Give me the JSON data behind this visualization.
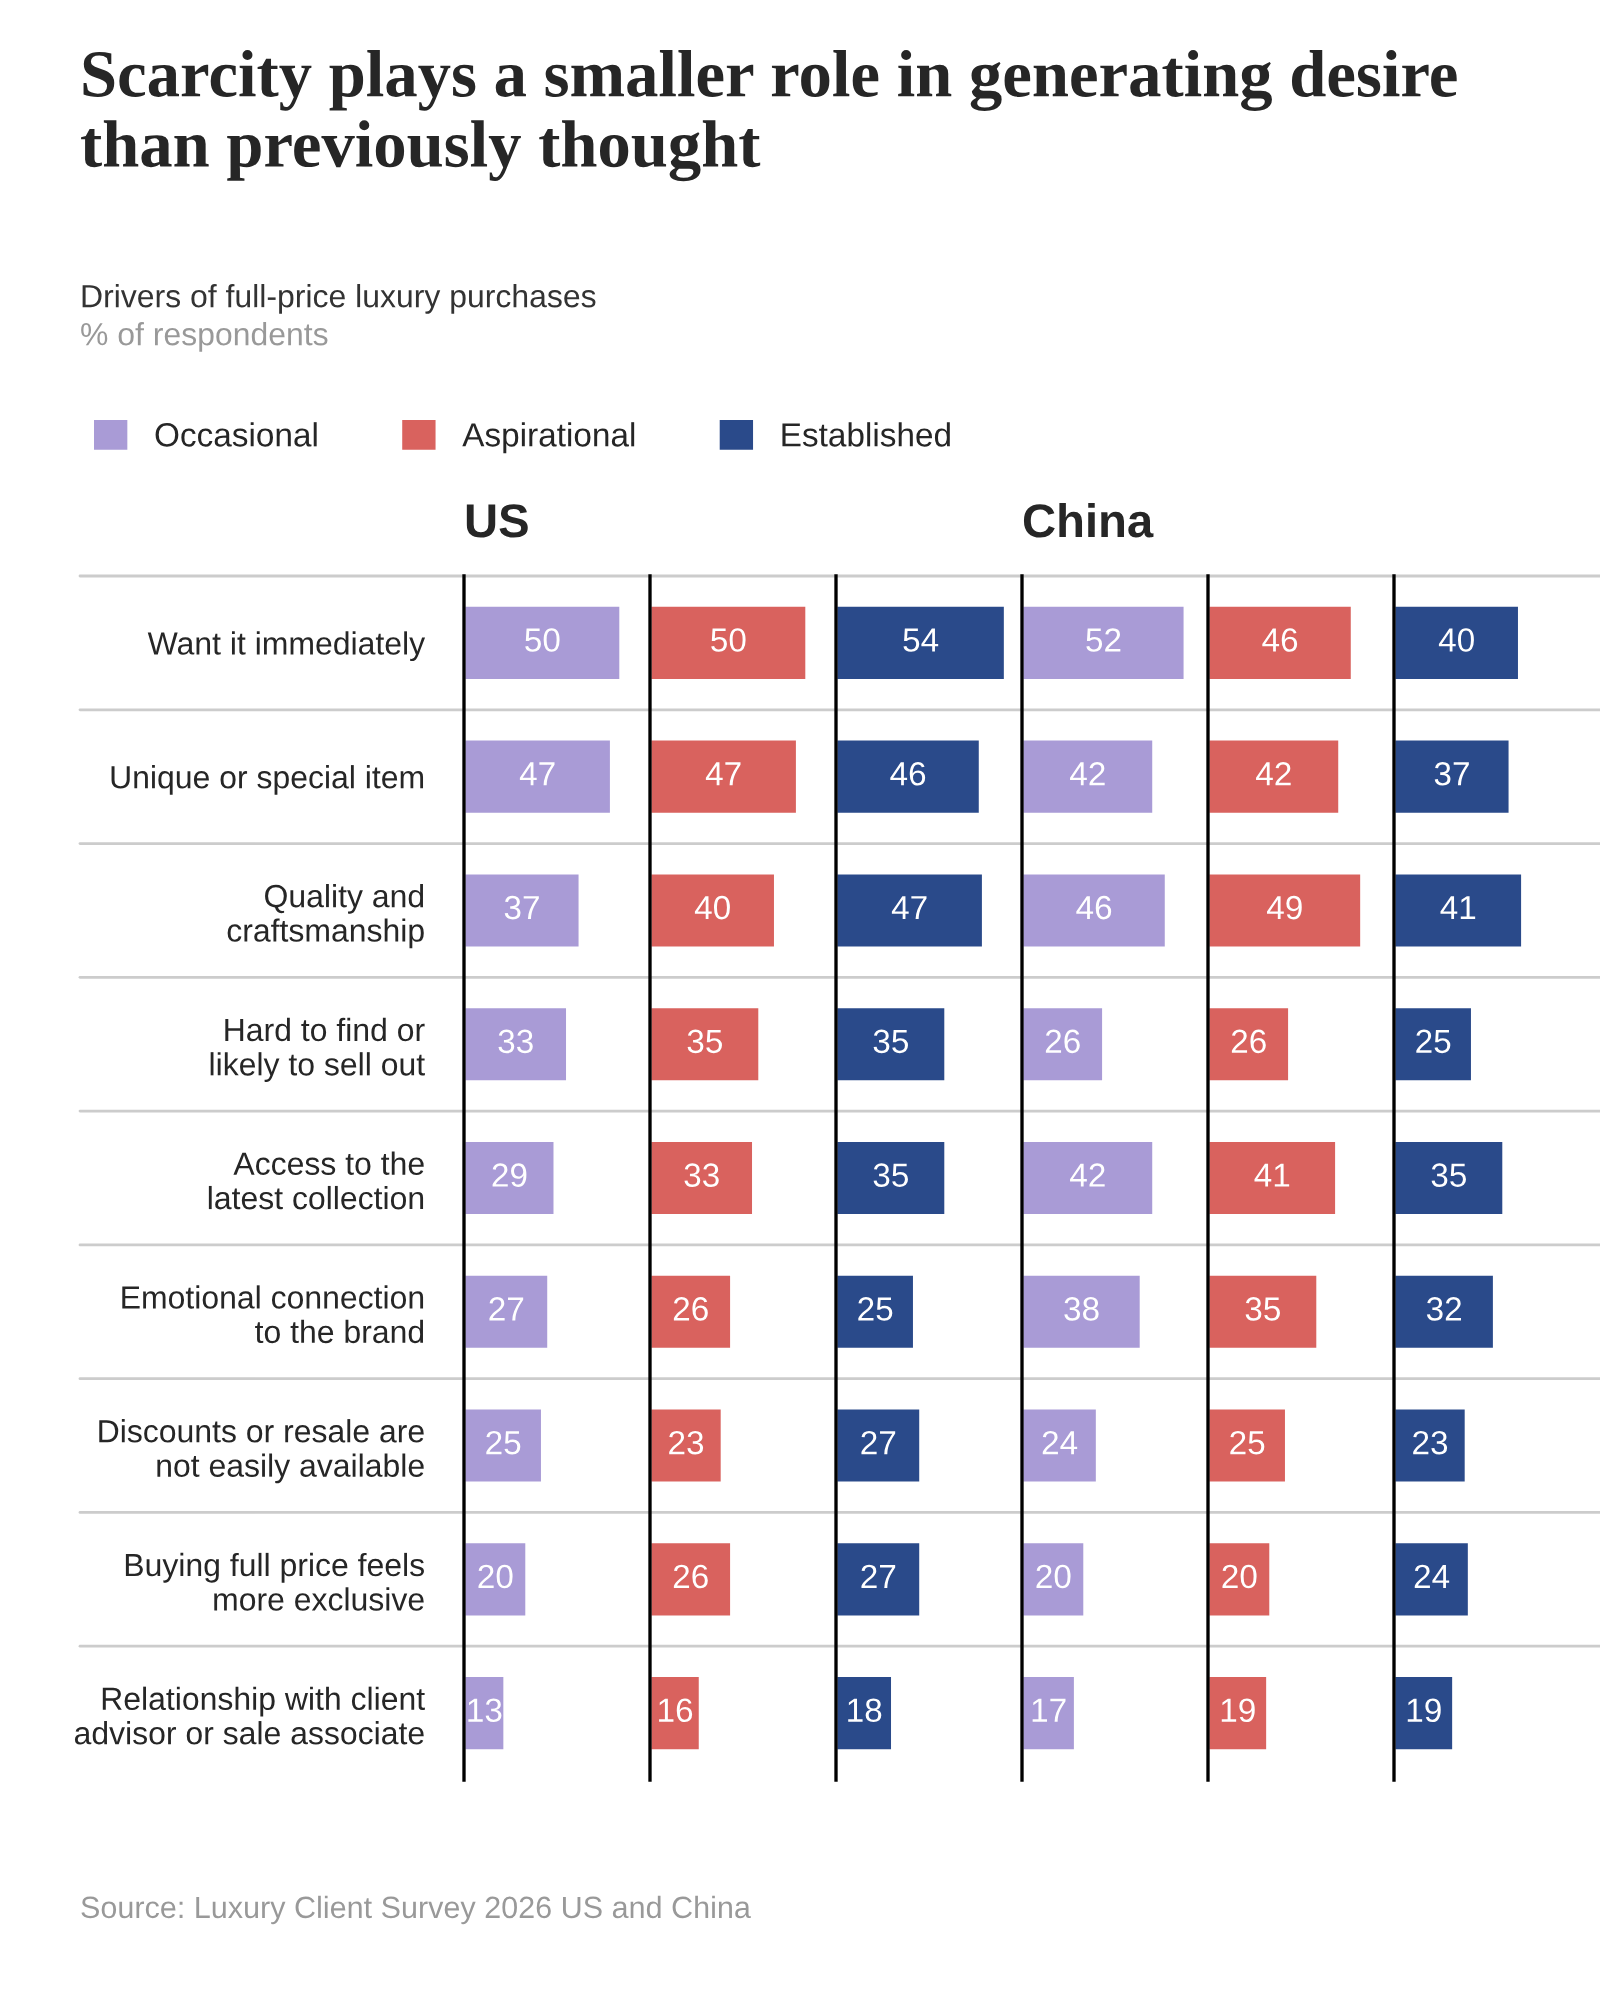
{
  "chart_data": [
    {
      "type": "other",
      "title": "Scarcity plays a smaller role in generating desire than previously thought",
      "subtitle": "Drivers of full-price luxury purchases",
      "annotations": [
        "% of respondents",
        "Source: Luxury Client Survey 2026 US and China"
      ]
    },
    {
      "type": "bar",
      "orientation": "horizontal",
      "title": "US",
      "tick_labels": "y",
      "legend": "top",
      "data_labels": true,
      "categories": [
        "Want it immediately",
        "Unique or special item",
        "Quality and\ncraftsmanship",
        "Hard to find or\nlikely to sell out",
        "Access to the\nlatest collection",
        "Emotional connection\nto the brand",
        "Discounts or resale are\nnot easily available",
        "Buying full price feels\nmore exclusive",
        "Relationship with client\nadvisor or sale associate"
      ],
      "series": [
        {
          "name": "Occasional",
          "color": "#a99bd6",
          "values": [
            50,
            47,
            37,
            33,
            29,
            27,
            25,
            20,
            13
          ]
        }
      ]
    },
    {
      "type": "bar",
      "orientation": "horizontal",
      "tick_labels": false,
      "legend": "top",
      "data_labels": true,
      "categories": [
        null,
        null,
        null,
        null,
        null,
        null,
        null,
        null,
        null
      ],
      "series": [
        {
          "name": "Aspirational",
          "color": "#d9625e",
          "values": [
            50,
            47,
            40,
            35,
            33,
            26,
            23,
            26,
            16
          ]
        }
      ]
    },
    {
      "type": "bar",
      "orientation": "horizontal",
      "tick_labels": false,
      "legend": "top",
      "data_labels": true,
      "categories": [
        null,
        null,
        null,
        null,
        null,
        null,
        null,
        null,
        null
      ],
      "series": [
        {
          "name": "Established",
          "color": "#2a4a8a",
          "values": [
            54,
            46,
            47,
            35,
            35,
            25,
            27,
            27,
            18
          ]
        }
      ]
    },
    {
      "type": "bar",
      "orientation": "horizontal",
      "title": "China",
      "tick_labels": false,
      "legend": "top",
      "data_labels": true,
      "categories": [
        null,
        null,
        null,
        null,
        null,
        null,
        null,
        null,
        null
      ],
      "series": [
        {
          "name": "Occasional",
          "color": "#a99bd6",
          "values": [
            52,
            42,
            46,
            26,
            42,
            38,
            24,
            20,
            17
          ]
        }
      ]
    },
    {
      "type": "bar",
      "orientation": "horizontal",
      "tick_labels": false,
      "legend": "top",
      "data_labels": true,
      "categories": [
        null,
        null,
        null,
        null,
        null,
        null,
        null,
        null,
        null
      ],
      "series": [
        {
          "name": "Aspirational",
          "color": "#d9625e",
          "values": [
            46,
            42,
            49,
            26,
            41,
            35,
            25,
            20,
            19
          ]
        }
      ]
    },
    {
      "type": "bar",
      "orientation": "horizontal",
      "tick_labels": false,
      "legend": "top",
      "data_labels": true,
      "categories": [
        null,
        null,
        null,
        null,
        null,
        null,
        null,
        null,
        null
      ],
      "series": [
        {
          "name": "Established",
          "color": "#2a4a8a",
          "values": [
            40,
            37,
            41,
            25,
            35,
            32,
            23,
            24,
            19
          ]
        }
      ]
    }
  ]
}
